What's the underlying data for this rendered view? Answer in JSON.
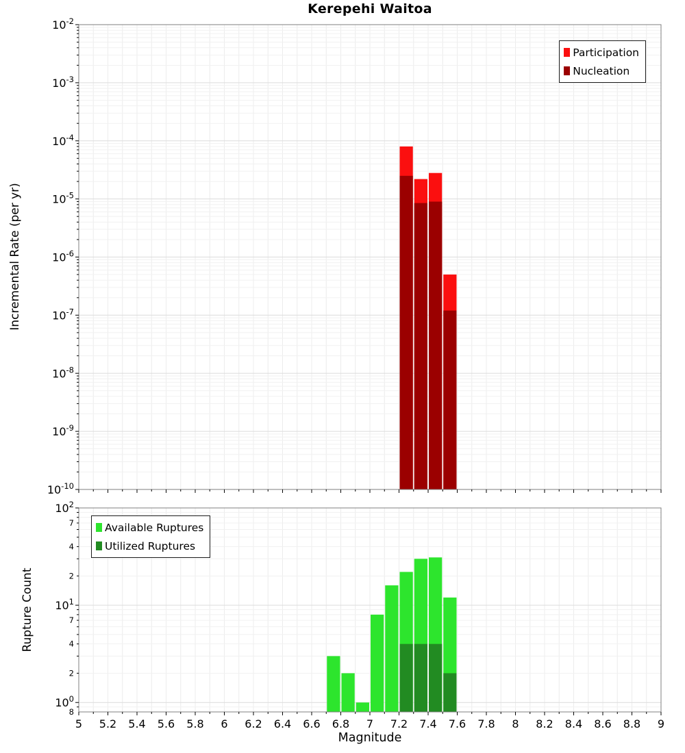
{
  "title": "Kerepehi Waitoa",
  "chart_data": [
    {
      "type": "bar",
      "title": "Kerepehi Waitoa",
      "xlabel": "Magnitude",
      "ylabel": "Incremental Rate (per yr)",
      "yscale": "log",
      "xlim": [
        5,
        9
      ],
      "ylim": [
        1e-10,
        0.01
      ],
      "x_tick_step": 0.2,
      "grid": true,
      "bin_width": 0.1,
      "bin_centers": [
        7.25,
        7.35,
        7.45,
        7.55
      ],
      "series": [
        {
          "name": "Participation",
          "color": "#fb0f0f",
          "values": [
            8e-05,
            2.2e-05,
            2.8e-05,
            5e-07
          ]
        },
        {
          "name": "Nucleation",
          "color": "#9b0000",
          "values": [
            2.5e-05,
            8.5e-06,
            9e-06,
            1.2e-07
          ]
        }
      ],
      "legend_position": "top-right"
    },
    {
      "type": "bar",
      "xlabel": "Magnitude",
      "ylabel": "Rupture Count",
      "yscale": "log",
      "xlim": [
        5,
        9
      ],
      "ylim": [
        0.8,
        100
      ],
      "x_tick_step": 0.2,
      "grid": true,
      "bin_width": 0.1,
      "bin_centers": [
        6.75,
        6.85,
        6.95,
        7.05,
        7.15,
        7.25,
        7.35,
        7.45,
        7.55
      ],
      "series": [
        {
          "name": "Available Ruptures",
          "color": "#2de52d",
          "values": [
            3,
            2,
            1,
            8,
            16,
            22,
            30,
            31,
            12
          ]
        },
        {
          "name": "Utilized Ruptures",
          "color": "#228b22",
          "values": [
            0,
            0,
            0,
            0,
            0,
            4,
            4,
            4,
            2
          ]
        }
      ],
      "minor_tick_labels": [
        70,
        40,
        20,
        7,
        4,
        2,
        0.8
      ],
      "legend_position": "top-left"
    }
  ]
}
